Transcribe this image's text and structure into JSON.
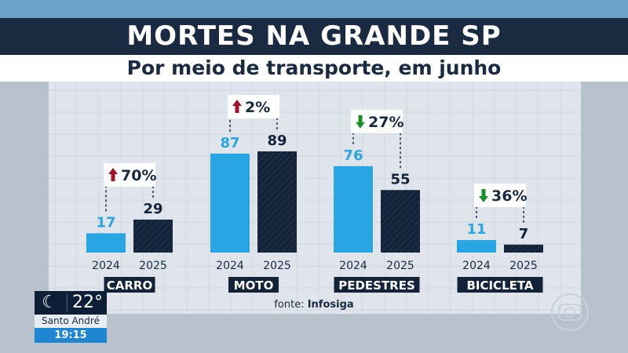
{
  "header": {
    "title": "MORTES NA GRANDE SP",
    "subtitle": "Por meio de transporte, em junho"
  },
  "weather": {
    "icon": "moon-icon",
    "temperature": "22°",
    "city": "Santo André",
    "time": "19:15"
  },
  "colors": {
    "bar_2024": "#27a6e3",
    "bar_2025": "#13233a",
    "up_arrow": "#a3122b",
    "down_arrow": "#1c8f2c",
    "category_label_bg": "#13233a"
  },
  "chart_data": {
    "type": "bar",
    "categories": [
      "CARRO",
      "MOTO",
      "PEDESTRES",
      "BICICLETA"
    ],
    "series": [
      {
        "name": "2024",
        "values": [
          17,
          87,
          76,
          11
        ]
      },
      {
        "name": "2025",
        "values": [
          29,
          89,
          55,
          7
        ]
      }
    ],
    "changes": [
      {
        "direction": "up",
        "label": "70%"
      },
      {
        "direction": "up",
        "label": "2%"
      },
      {
        "direction": "down",
        "label": "27%"
      },
      {
        "direction": "down",
        "label": "36%"
      }
    ],
    "source_label": "fonte:",
    "source_name": "Infosiga",
    "ylim": [
      0,
      100
    ]
  }
}
